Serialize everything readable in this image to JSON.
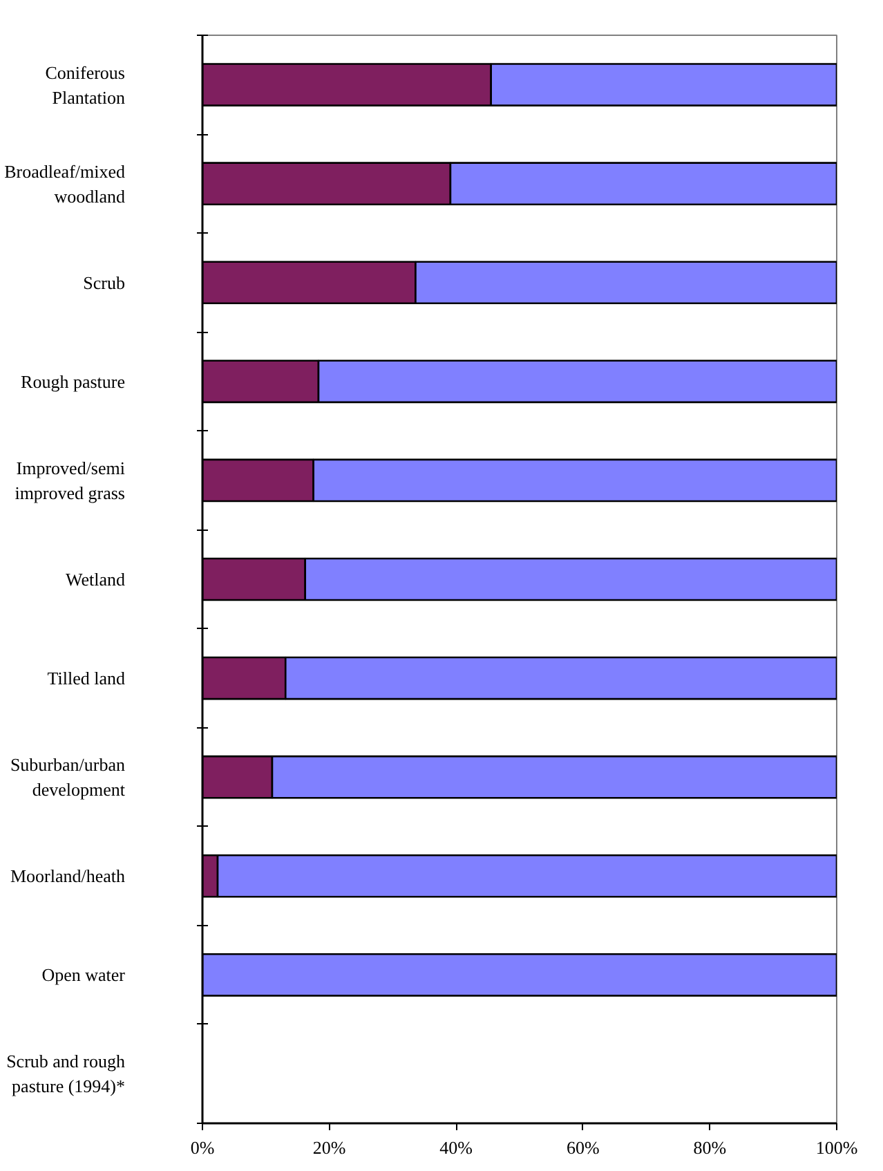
{
  "chart_data": {
    "type": "bar",
    "orientation": "horizontal",
    "stacked": true,
    "categories": [
      "Coniferous\nPlantation",
      "Broadleaf/mixed\nwoodland",
      "Scrub",
      "Rough pasture",
      "Improved/semi\nimproved grass",
      "Wetland",
      "Tilled land",
      "Suburban/urban\ndevelopment",
      "Moorland/heath",
      "Open water",
      "Scrub and rough\npasture (1994)*"
    ],
    "series": [
      {
        "color": "#7f1f5f",
        "values": [
          45.5,
          39.1,
          33.6,
          18.3,
          17.5,
          16.2,
          13.1,
          11.0,
          2.4,
          0,
          null
        ]
      },
      {
        "color": "#8080ff",
        "values": [
          54.5,
          60.9,
          66.4,
          81.7,
          82.5,
          83.8,
          86.9,
          89.0,
          97.6,
          100,
          null
        ]
      }
    ],
    "xlim": [
      0,
      100
    ],
    "xticks": [
      {
        "value": 0,
        "label": "0%"
      },
      {
        "value": 20,
        "label": "20%"
      },
      {
        "value": 40,
        "label": "40%"
      },
      {
        "value": 60,
        "label": "60%"
      },
      {
        "value": 80,
        "label": "80%"
      },
      {
        "value": 100,
        "label": "100%"
      }
    ],
    "grid": false
  }
}
